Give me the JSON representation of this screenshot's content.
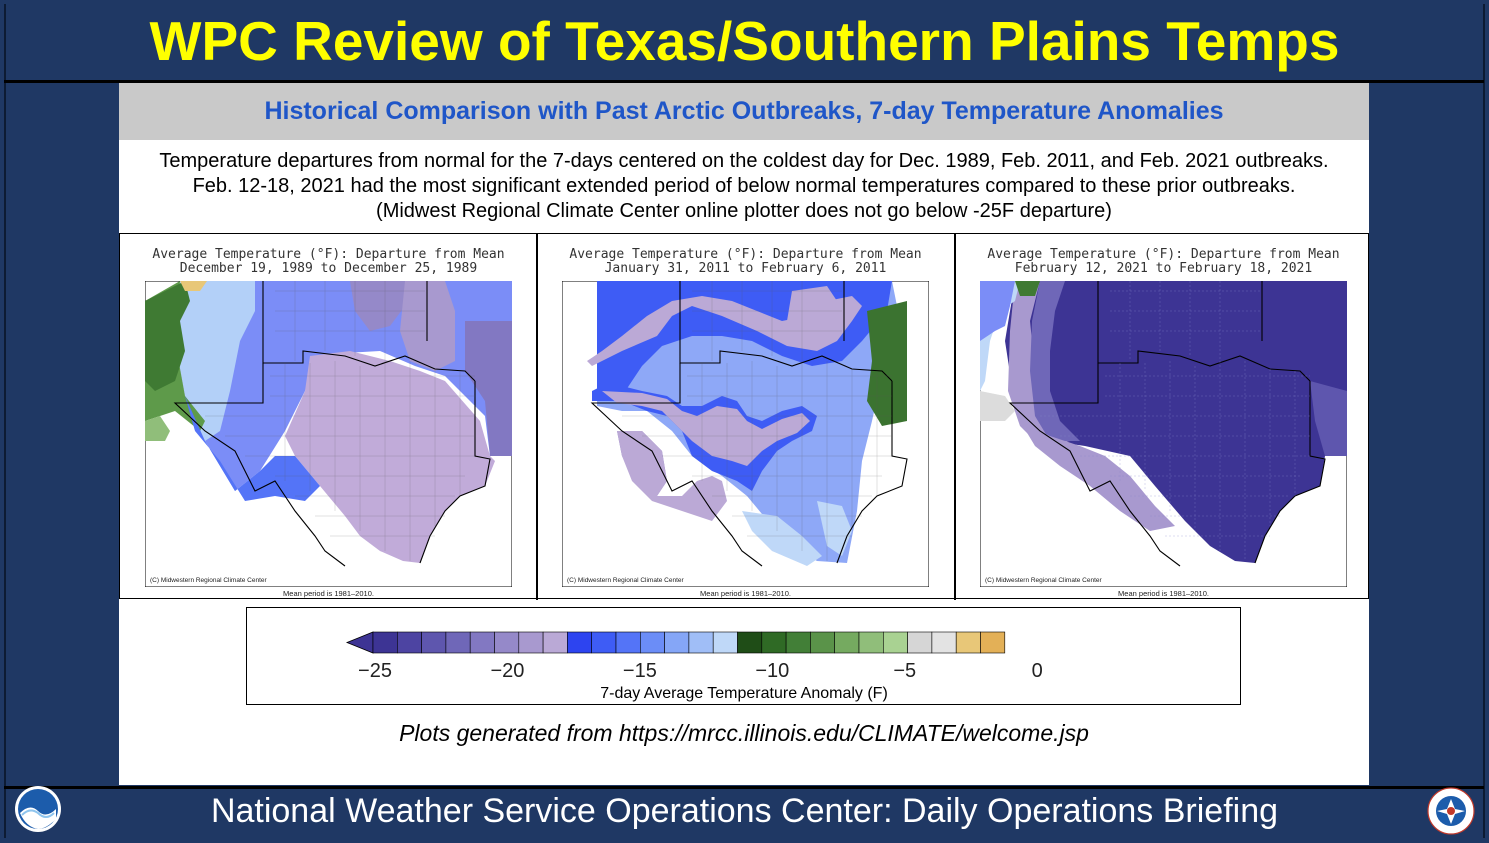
{
  "slide": {
    "title": "WPC Review of Texas/Southern Plains Temps",
    "footer": "National Weather Service Operations Center: Daily Operations Briefing"
  },
  "header": {
    "text": "Historical Comparison with Past Arctic Outbreaks, 7-day Temperature Anomalies"
  },
  "description": {
    "line1": "Temperature departures from normal for the 7-days centered on the coldest day for Dec. 1989, Feb. 2011, and Feb. 2021 outbreaks.",
    "line2": "Feb. 12-18, 2021 had the most significant extended period of below normal temperatures compared to these prior outbreaks.",
    "line3": "(Midwest Regional Climate Center online plotter does not go below -25F departure)"
  },
  "maps": [
    {
      "title1": "Average Temperature (°F): Departure from Mean",
      "title2": "December 19, 1989 to December 25, 1989",
      "credit": "(C) Midwestern Regional Climate Center",
      "mean": "Mean period is 1981–2010."
    },
    {
      "title1": "Average Temperature (°F): Departure from Mean",
      "title2": "January 31, 2011 to February 6, 2011",
      "credit": "(C) Midwestern Regional Climate Center",
      "mean": "Mean period is 1981–2010."
    },
    {
      "title1": "Average Temperature (°F): Departure from Mean",
      "title2": "February 12, 2021 to February 18, 2021",
      "credit": "(C) Midwestern Regional Climate Center",
      "mean": "Mean period is 1981–2010."
    }
  ],
  "legend": {
    "label": "7-day Average Temperature Anomaly (F)",
    "ticks": [
      "−25",
      "−20",
      "−15",
      "−10",
      "−5",
      "0"
    ],
    "colors": [
      "#3d3494",
      "#4d44a2",
      "#5e56ae",
      "#6f67b8",
      "#8278c2",
      "#9589c9",
      "#a899cf",
      "#baa9d6",
      "#2d44f0",
      "#3e5cf5",
      "#5474f7",
      "#6b8df7",
      "#85a6f7",
      "#a0bef7",
      "#bfd8f8",
      "#1f4d17",
      "#2f6a25",
      "#427f37",
      "#5a9349",
      "#75aa60",
      "#90be7a",
      "#a9d292",
      "#d6d6d6",
      "#e3e3e3",
      "#e8c778",
      "#e3b057"
    ]
  },
  "source": {
    "text": "Plots generated from https://mrcc.illinois.edu/CLIMATE/welcome.jsp"
  },
  "logos": {
    "left": "noaa-logo",
    "right": "nws-logo"
  }
}
